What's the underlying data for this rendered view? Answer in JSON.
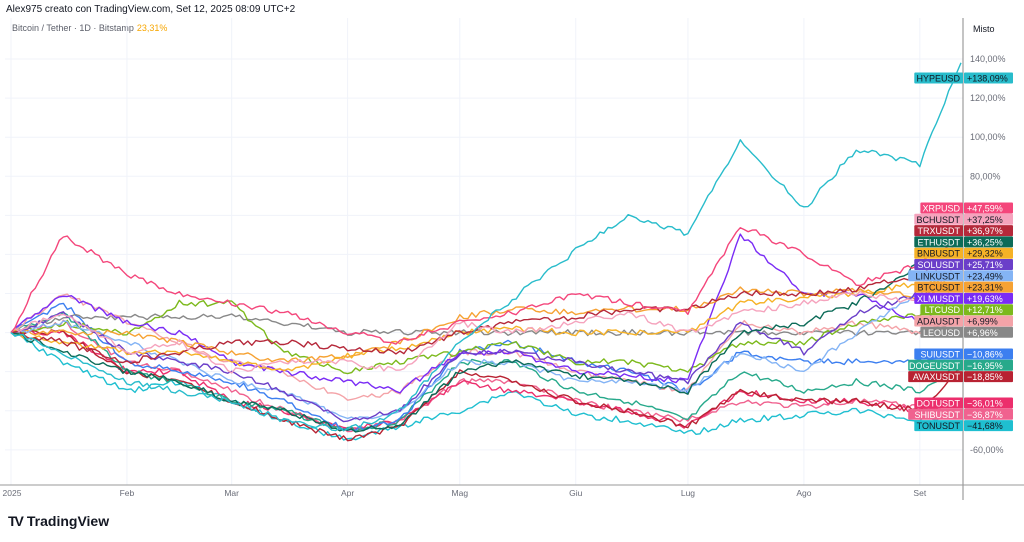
{
  "header": {
    "attribution": "Alex975 creato con TradingView.com, Set 12, 2025 08:09 UTC+2"
  },
  "legend": {
    "symbol": "Bitcoin / Tether · 1D · Bitstamp",
    "change": "23,31%"
  },
  "scale_mode": "Misto",
  "brand": "TradingView",
  "chart_data": {
    "type": "line",
    "title": "",
    "xlabel": "",
    "ylabel": "",
    "y_unit": "%",
    "ylim": [
      -78,
      161
    ],
    "y_ticks": [
      "140,00%",
      "120,00%",
      "100,00%",
      "80,00%",
      "-60,00%"
    ],
    "y_tick_values": [
      140,
      120,
      100,
      80,
      -60
    ],
    "x_ticks": [
      "2025",
      "Feb",
      "Mar",
      "Apr",
      "Mag",
      "Giu",
      "Lug",
      "Ago",
      "Set"
    ],
    "x_tick_dates": [
      "2025-01-01",
      "2025-02-01",
      "2025-03-01",
      "2025-04-01",
      "2025-05-01",
      "2025-06-01",
      "2025-07-01",
      "2025-08-01",
      "2025-09-01"
    ],
    "grid": true,
    "legend_placement": "right-axis labels",
    "x": [
      "2025-01-01",
      "2025-01-15",
      "2025-02-01",
      "2025-02-15",
      "2025-03-01",
      "2025-03-15",
      "2025-04-01",
      "2025-04-15",
      "2025-05-01",
      "2025-05-15",
      "2025-06-01",
      "2025-06-15",
      "2025-07-01",
      "2025-07-15",
      "2025-08-01",
      "2025-08-15",
      "2025-09-01",
      "2025-09-12"
    ],
    "series": [
      {
        "name": "HYPEUSD",
        "label": "+138,09%",
        "color": "#28bccb",
        "text": "#131722",
        "values": [
          0,
          -10,
          -25,
          -30,
          -35,
          -45,
          -50,
          -40,
          -5,
          17,
          42,
          60,
          50,
          99,
          63,
          94,
          86,
          138.09
        ]
      },
      {
        "name": "XRPUSD",
        "label": "+47,59%",
        "color": "#f4467b",
        "text": "#ffffff",
        "values": [
          0,
          50,
          30,
          20,
          15,
          10,
          0,
          -5,
          5,
          10,
          20,
          15,
          10,
          55,
          40,
          25,
          35,
          47.59
        ]
      },
      {
        "name": "BCHUSDT",
        "label": "+37,25%",
        "color": "#f5a3bd",
        "text": "#131722",
        "values": [
          0,
          10,
          -10,
          -5,
          -20,
          -15,
          -15,
          -20,
          5,
          0,
          5,
          10,
          0,
          10,
          15,
          20,
          15,
          37.25
        ]
      },
      {
        "name": "TRXUSDT",
        "label": "+36,97%",
        "color": "#b5283a",
        "text": "#ffffff",
        "values": [
          0,
          -5,
          -15,
          -10,
          -5,
          -5,
          -8,
          -10,
          0,
          5,
          8,
          12,
          12,
          20,
          20,
          22,
          30,
          36.97
        ]
      },
      {
        "name": "ETHUSDT",
        "label": "+36,25%",
        "color": "#0c6b58",
        "text": "#ffffff",
        "values": [
          0,
          -10,
          -20,
          -25,
          -35,
          -40,
          -50,
          -48,
          -20,
          -15,
          -22,
          -25,
          -30,
          0,
          5,
          15,
          35,
          36.25
        ]
      },
      {
        "name": "BNBUSDT",
        "label": "+29,32%",
        "color": "#f6b226",
        "text": "#131722",
        "values": [
          0,
          -5,
          -10,
          -10,
          -15,
          -20,
          -12,
          -8,
          0,
          2,
          0,
          0,
          0,
          15,
          18,
          20,
          25,
          29.32
        ]
      },
      {
        "name": "SOLUSDT",
        "label": "+25,71%",
        "color": "#6b3fc9",
        "text": "#ffffff",
        "values": [
          0,
          10,
          -10,
          -15,
          -20,
          -30,
          -45,
          -40,
          -10,
          -10,
          -15,
          -20,
          -25,
          5,
          -10,
          10,
          20,
          25.71
        ]
      },
      {
        "name": "LINKUSDT",
        "label": "+23,49%",
        "color": "#84b4f5",
        "text": "#131722",
        "values": [
          0,
          5,
          -5,
          -15,
          -25,
          -30,
          -45,
          -40,
          -15,
          -15,
          -25,
          -25,
          -30,
          -10,
          -20,
          0,
          20,
          23.49
        ]
      },
      {
        "name": "BTCUSDT",
        "label": "+23,31%",
        "color": "#f6a233",
        "text": "#131722",
        "values": [
          0,
          0,
          0,
          -5,
          -10,
          -15,
          -12,
          -5,
          8,
          12,
          10,
          12,
          12,
          22,
          20,
          22,
          18,
          23.31
        ]
      },
      {
        "name": "XLMUSDT",
        "label": "+19,63%",
        "color": "#7a2cf5",
        "text": "#ffffff",
        "values": [
          0,
          20,
          5,
          0,
          -15,
          -20,
          -25,
          -30,
          -10,
          -10,
          -20,
          -22,
          -25,
          50,
          20,
          20,
          5,
          19.63
        ]
      },
      {
        "name": "LTCUSD",
        "label": "+12,71%",
        "color": "#7cb91c",
        "text": "#ffffff",
        "values": [
          0,
          5,
          0,
          15,
          15,
          -10,
          -20,
          -15,
          -10,
          -5,
          -15,
          -15,
          -20,
          -5,
          -5,
          5,
          10,
          12.71
        ]
      },
      {
        "name": "ADAUSDT",
        "label": "+6,99%",
        "color": "#f4a3a8",
        "text": "#131722",
        "values": [
          0,
          20,
          5,
          -5,
          -15,
          -20,
          -35,
          -30,
          -10,
          -10,
          -20,
          -25,
          -30,
          5,
          0,
          5,
          0,
          6.99
        ]
      },
      {
        "name": "LEOUSD",
        "label": "+6,96%",
        "color": "#888888",
        "text": "#ffffff",
        "values": [
          0,
          8,
          8,
          8,
          8,
          5,
          0,
          0,
          0,
          0,
          0,
          0,
          0,
          0,
          0,
          0,
          0,
          6.96
        ]
      },
      {
        "name": "SUIUSDT",
        "label": "−10,86%",
        "color": "#3c7ff0",
        "text": "#ffffff",
        "values": [
          0,
          15,
          -15,
          -20,
          -25,
          -35,
          -50,
          -45,
          -10,
          -5,
          -15,
          -20,
          -30,
          -10,
          -15,
          -15,
          -15,
          -10.86
        ]
      },
      {
        "name": "DOGEUSDT",
        "label": "−16,95%",
        "color": "#27a98b",
        "text": "#ffffff",
        "values": [
          0,
          10,
          -20,
          -25,
          -35,
          -40,
          -50,
          -45,
          -15,
          -15,
          -30,
          -35,
          -45,
          -20,
          -30,
          -25,
          -30,
          -16.95
        ]
      },
      {
        "name": "AVAXUSDT",
        "label": "−18,85%",
        "color": "#b82232",
        "text": "#ffffff",
        "values": [
          0,
          0,
          -20,
          -25,
          -35,
          -45,
          -55,
          -48,
          -20,
          -25,
          -35,
          -40,
          -48,
          -30,
          -35,
          -35,
          -40,
          -18.85
        ]
      },
      {
        "name": "DOTUSDT",
        "label": "−36,01%",
        "color": "#ec2e6c",
        "text": "#ffffff",
        "values": [
          0,
          0,
          -20,
          -20,
          -35,
          -40,
          -50,
          -45,
          -25,
          -30,
          -35,
          -40,
          -48,
          -30,
          -35,
          -35,
          -40,
          -36.01
        ]
      },
      {
        "name": "SHIBUSDT",
        "label": "−36,87%",
        "color": "#f0628f",
        "text": "#ffffff",
        "values": [
          0,
          5,
          -15,
          -20,
          -30,
          -40,
          -50,
          -45,
          -25,
          -25,
          -35,
          -40,
          -45,
          -35,
          -38,
          -35,
          -38,
          -36.87
        ]
      },
      {
        "name": "TONUSDT",
        "label": "−41,68%",
        "color": "#1fbfd0",
        "text": "#131722",
        "values": [
          0,
          -15,
          -30,
          -25,
          -35,
          -45,
          -55,
          -48,
          -40,
          -30,
          -42,
          -45,
          -52,
          -45,
          -42,
          -40,
          -45,
          -41.68
        ]
      }
    ]
  }
}
